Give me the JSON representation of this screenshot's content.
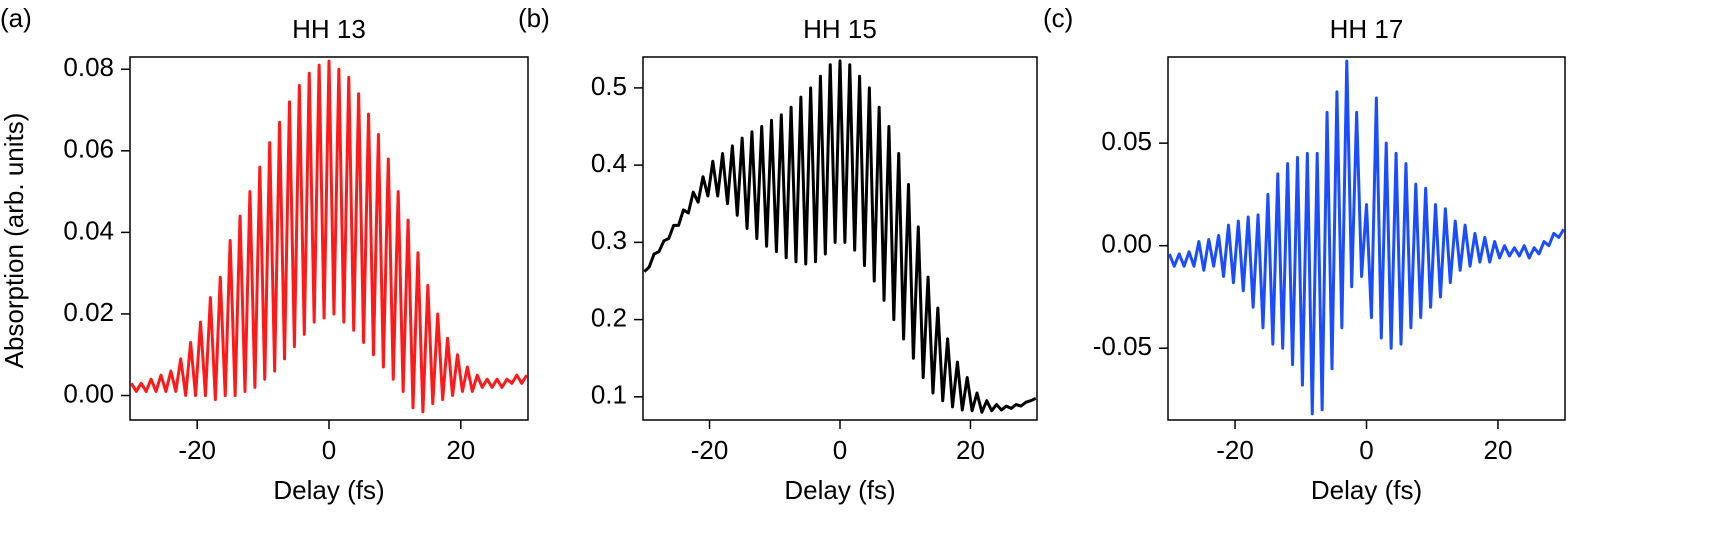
{
  "chart_data": [
    {
      "type": "line",
      "label": "(a)",
      "title": "HH 13",
      "xlabel": "Delay (fs)",
      "ylabel": "Absorption (arb. units)",
      "color": "#ff1a1a",
      "xlim": [
        -30.2,
        30.2
      ],
      "xticks": [
        -20,
        0,
        20
      ],
      "ylim": [
        -0.006,
        0.083
      ],
      "yticks": [
        {
          "value": 0,
          "label": "0.00"
        },
        0.02,
        0.04,
        0.06,
        0.08
      ],
      "x": [
        -30,
        -29.25,
        -28.5,
        -27.75,
        -27,
        -26.25,
        -25.5,
        -24.75,
        -24,
        -23.25,
        -22.5,
        -21.75,
        -21,
        -20.25,
        -19.5,
        -18.75,
        -18,
        -17.25,
        -16.5,
        -15.75,
        -15,
        -14.25,
        -13.5,
        -12.75,
        -12,
        -11.25,
        -10.5,
        -9.75,
        -9,
        -8.25,
        -7.5,
        -6.75,
        -6,
        -5.25,
        -4.5,
        -3.75,
        -3,
        -2.25,
        -1.5,
        -0.75,
        0,
        0.75,
        1.5,
        2.25,
        3,
        3.75,
        4.5,
        5.25,
        6,
        6.75,
        7.5,
        8.25,
        9,
        9.75,
        10.5,
        11.25,
        12,
        12.75,
        13.5,
        14.25,
        15,
        15.75,
        16.5,
        17.25,
        18,
        18.75,
        19.5,
        20.25,
        21,
        21.75,
        22.5,
        23.25,
        24,
        24.75,
        25.5,
        26.25,
        27,
        27.75,
        28.5,
        29.25,
        30
      ],
      "values": [
        0.003,
        0.001,
        0.003,
        0.001,
        0.004,
        0.001,
        0.005,
        0.001,
        0.006,
        0.001,
        0.009,
        0.0,
        0.013,
        0.0,
        0.018,
        0.0,
        0.024,
        -0.001,
        0.029,
        0.0,
        0.038,
        0.0,
        0.044,
        0.001,
        0.05,
        0.002,
        0.056,
        0.004,
        0.062,
        0.006,
        0.067,
        0.009,
        0.072,
        0.012,
        0.076,
        0.015,
        0.079,
        0.018,
        0.081,
        0.019,
        0.082,
        0.02,
        0.08,
        0.018,
        0.078,
        0.016,
        0.074,
        0.013,
        0.069,
        0.01,
        0.064,
        0.007,
        0.058,
        0.004,
        0.05,
        0.001,
        0.043,
        -0.003,
        0.035,
        -0.004,
        0.027,
        -0.002,
        0.02,
        -0.001,
        0.014,
        0.0,
        0.01,
        0.001,
        0.007,
        0.001,
        0.005,
        0.002,
        0.004,
        0.002,
        0.004,
        0.002,
        0.004,
        0.003,
        0.005,
        0.003,
        0.005
      ]
    },
    {
      "type": "line",
      "label": "(b)",
      "title": "HH 15",
      "xlabel": "Delay (fs)",
      "color": "#000000",
      "xlim": [
        -30.2,
        30.2
      ],
      "xticks": [
        -20,
        0,
        20
      ],
      "ylim": [
        0.07,
        0.54
      ],
      "yticks": [
        0.1,
        0.2,
        0.3,
        0.4,
        0.5
      ],
      "x": [
        -30,
        -29.25,
        -28.5,
        -27.75,
        -27,
        -26.25,
        -25.5,
        -24.75,
        -24,
        -23.25,
        -22.5,
        -21.75,
        -21,
        -20.25,
        -19.5,
        -18.75,
        -18,
        -17.25,
        -16.5,
        -15.75,
        -15,
        -14.25,
        -13.5,
        -12.75,
        -12,
        -11.25,
        -10.5,
        -9.75,
        -9,
        -8.25,
        -7.5,
        -6.75,
        -6,
        -5.25,
        -4.5,
        -3.75,
        -3,
        -2.25,
        -1.5,
        -0.75,
        0,
        0.75,
        1.5,
        2.25,
        3,
        3.75,
        4.5,
        5.25,
        6,
        6.75,
        7.5,
        8.25,
        9,
        9.75,
        10.5,
        11.25,
        12,
        12.75,
        13.5,
        14.25,
        15,
        15.75,
        16.5,
        17.25,
        18,
        18.75,
        19.5,
        20.25,
        21,
        21.75,
        22.5,
        23.25,
        24,
        24.75,
        25.5,
        26.25,
        27,
        27.75,
        28.5,
        29.25,
        30
      ],
      "values": [
        0.262,
        0.268,
        0.285,
        0.288,
        0.302,
        0.305,
        0.322,
        0.322,
        0.342,
        0.338,
        0.365,
        0.352,
        0.385,
        0.36,
        0.405,
        0.36,
        0.415,
        0.35,
        0.425,
        0.335,
        0.435,
        0.318,
        0.443,
        0.305,
        0.45,
        0.295,
        0.458,
        0.288,
        0.465,
        0.28,
        0.475,
        0.275,
        0.488,
        0.272,
        0.5,
        0.275,
        0.515,
        0.285,
        0.53,
        0.3,
        0.535,
        0.3,
        0.53,
        0.29,
        0.515,
        0.27,
        0.5,
        0.25,
        0.475,
        0.225,
        0.45,
        0.2,
        0.415,
        0.175,
        0.375,
        0.15,
        0.32,
        0.125,
        0.255,
        0.105,
        0.215,
        0.095,
        0.175,
        0.087,
        0.145,
        0.083,
        0.125,
        0.082,
        0.105,
        0.08,
        0.095,
        0.082,
        0.09,
        0.083,
        0.088,
        0.085,
        0.09,
        0.088,
        0.093,
        0.095,
        0.098
      ]
    },
    {
      "type": "line",
      "label": "(c)",
      "title": "HH 17",
      "xlabel": "Delay (fs)",
      "color": "#1a4dff",
      "xlim": [
        -30.2,
        30.2
      ],
      "xticks": [
        -20,
        0,
        20
      ],
      "ylim": [
        -0.085,
        0.092
      ],
      "yticks": [
        -0.05,
        {
          "value": 0,
          "label": "0.00"
        },
        0.05
      ],
      "x": [
        -30,
        -29.25,
        -28.5,
        -27.75,
        -27,
        -26.25,
        -25.5,
        -24.75,
        -24,
        -23.25,
        -22.5,
        -21.75,
        -21,
        -20.25,
        -19.5,
        -18.75,
        -18,
        -17.25,
        -16.5,
        -15.75,
        -15,
        -14.25,
        -13.5,
        -12.75,
        -12,
        -11.25,
        -10.5,
        -9.75,
        -9,
        -8.25,
        -7.5,
        -6.75,
        -6,
        -5.25,
        -4.5,
        -3.75,
        -3,
        -2.25,
        -1.5,
        -0.75,
        0,
        0.75,
        1.5,
        2.25,
        3,
        3.75,
        4.5,
        5.25,
        6,
        6.75,
        7.5,
        8.25,
        9,
        9.75,
        10.5,
        11.25,
        12,
        12.75,
        13.5,
        14.25,
        15,
        15.75,
        16.5,
        17.25,
        18,
        18.75,
        19.5,
        20.25,
        21,
        21.75,
        22.5,
        23.25,
        24,
        24.75,
        25.5,
        26.25,
        27,
        27.75,
        28.5,
        29.25,
        30
      ],
      "values": [
        -0.004,
        -0.01,
        -0.004,
        -0.01,
        -0.003,
        -0.01,
        0.002,
        -0.012,
        0.003,
        -0.01,
        0.005,
        -0.015,
        0.01,
        -0.018,
        0.012,
        -0.022,
        0.014,
        -0.03,
        0.015,
        -0.04,
        0.025,
        -0.048,
        0.035,
        -0.05,
        0.04,
        -0.058,
        0.043,
        -0.068,
        0.045,
        -0.082,
        0.045,
        -0.08,
        0.065,
        -0.06,
        0.075,
        -0.04,
        0.09,
        -0.02,
        0.065,
        -0.015,
        0.02,
        -0.035,
        0.072,
        -0.045,
        0.05,
        -0.05,
        0.045,
        -0.048,
        0.04,
        -0.04,
        0.03,
        -0.035,
        0.028,
        -0.03,
        0.02,
        -0.025,
        0.018,
        -0.018,
        0.012,
        -0.012,
        0.01,
        -0.01,
        0.006,
        -0.008,
        0.004,
        -0.008,
        0.002,
        -0.006,
        0.0,
        -0.005,
        -0.001,
        -0.005,
        0.0,
        -0.006,
        -0.001,
        -0.004,
        0.002,
        0.0,
        0.006,
        0.004,
        0.008
      ]
    }
  ]
}
